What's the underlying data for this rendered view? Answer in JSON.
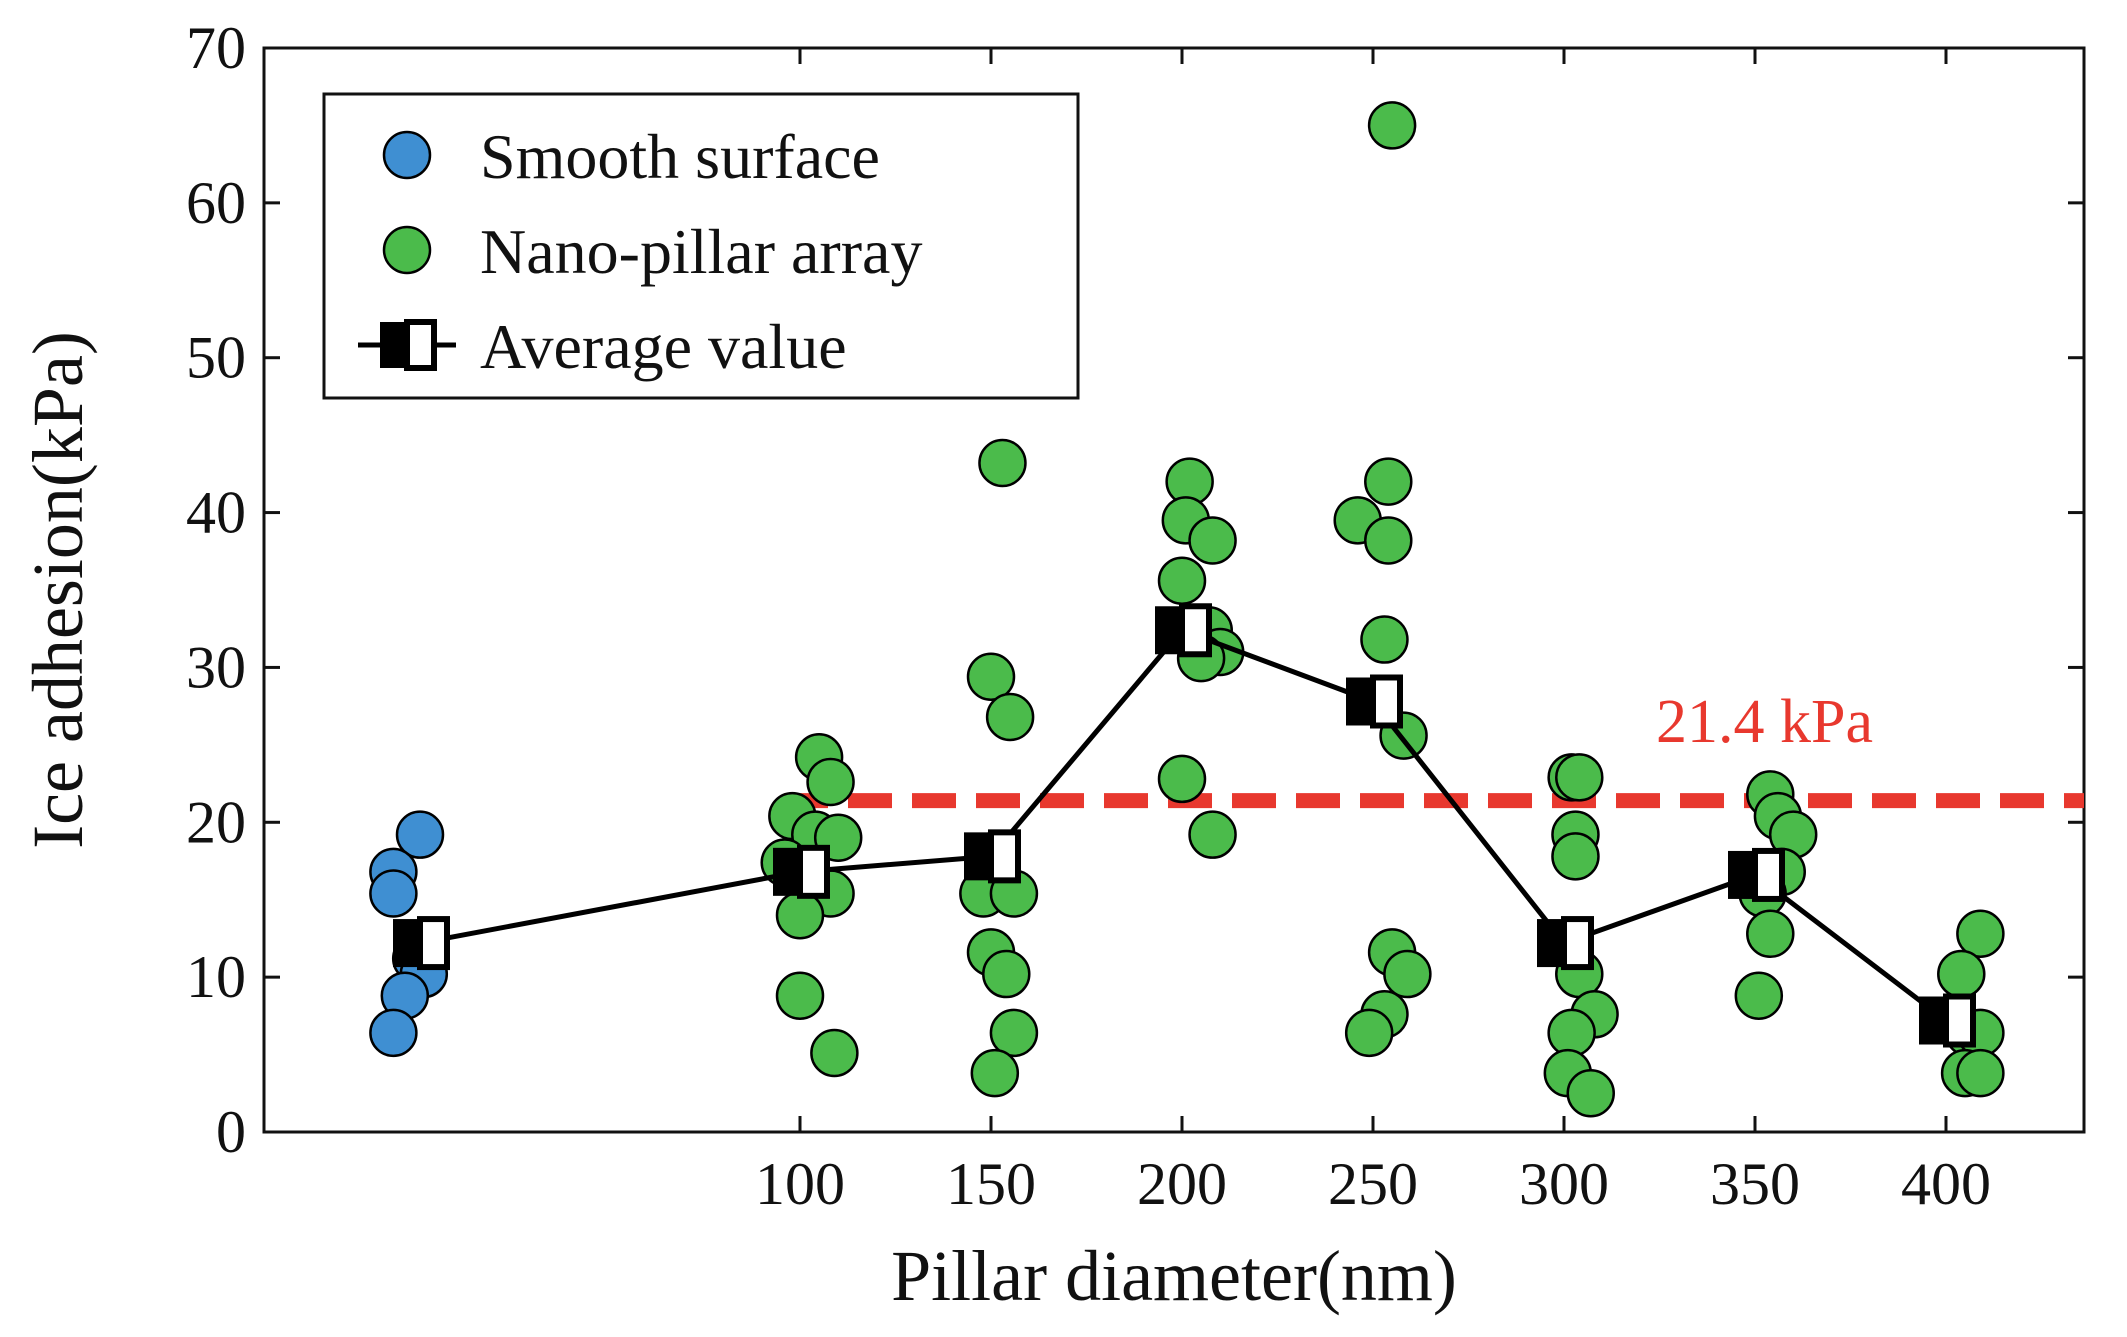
{
  "chart_data": {
    "type": "scatter",
    "xlabel": "Pillar diameter(nm)",
    "ylabel": "Ice adhesion(kPa)",
    "ylim": [
      0,
      70
    ],
    "yticks": [
      0,
      10,
      20,
      30,
      40,
      50,
      60,
      70
    ],
    "xticks": [
      100,
      150,
      200,
      250,
      300,
      350,
      400
    ],
    "legend": {
      "position": "top-left",
      "entries": [
        "Smooth surface",
        "Nano-pillar array",
        "Average value"
      ]
    },
    "colors": {
      "smooth": "#3f8fd2",
      "pillar": "#4bbb4b",
      "reference": "#e8382e",
      "outline": "#000000"
    },
    "reference_line": {
      "value": 21.4,
      "label": "21.4 kPa"
    },
    "series": [
      {
        "name": "Smooth surface",
        "group": "Smooth",
        "points": [
          [
            0,
            19.2
          ],
          [
            -7,
            16.8
          ],
          [
            -7,
            15.4
          ],
          [
            -1,
            11.2
          ],
          [
            1,
            10.2
          ],
          [
            -4,
            8.8
          ],
          [
            -7,
            6.4
          ]
        ]
      },
      {
        "name": "Nano-pillar array",
        "points": [
          [
            105,
            24.2
          ],
          [
            108,
            22.6
          ],
          [
            98,
            20.4
          ],
          [
            104,
            19.2
          ],
          [
            110,
            19.0
          ],
          [
            96,
            17.4
          ],
          [
            108,
            15.4
          ],
          [
            100,
            14.0
          ],
          [
            100,
            8.8
          ],
          [
            109,
            5.1
          ],
          [
            153,
            43.2
          ],
          [
            150,
            29.4
          ],
          [
            155,
            26.8
          ],
          [
            150,
            17.8
          ],
          [
            148,
            15.4
          ],
          [
            156,
            15.4
          ],
          [
            150,
            11.6
          ],
          [
            154,
            10.2
          ],
          [
            156,
            6.4
          ],
          [
            151,
            3.8
          ],
          [
            202,
            42.0
          ],
          [
            201,
            39.5
          ],
          [
            208,
            38.2
          ],
          [
            200,
            35.6
          ],
          [
            207,
            32.4
          ],
          [
            210,
            31.0
          ],
          [
            205,
            30.6
          ],
          [
            200,
            22.8
          ],
          [
            208,
            19.2
          ],
          [
            255,
            65.0
          ],
          [
            254,
            42.0
          ],
          [
            246,
            39.5
          ],
          [
            254,
            38.2
          ],
          [
            253,
            31.8
          ],
          [
            258,
            25.6
          ],
          [
            255,
            11.6
          ],
          [
            259,
            10.2
          ],
          [
            253,
            7.6
          ],
          [
            249,
            6.4
          ],
          [
            302,
            22.9
          ],
          [
            304,
            22.9
          ],
          [
            303,
            19.2
          ],
          [
            303,
            17.8
          ],
          [
            304,
            10.2
          ],
          [
            308,
            7.6
          ],
          [
            302,
            6.4
          ],
          [
            301,
            3.8
          ],
          [
            307,
            2.5
          ],
          [
            354,
            21.8
          ],
          [
            356,
            20.4
          ],
          [
            360,
            19.2
          ],
          [
            357,
            16.8
          ],
          [
            352,
            15.4
          ],
          [
            354,
            12.8
          ],
          [
            351,
            8.8
          ],
          [
            409,
            12.8
          ],
          [
            404,
            10.2
          ],
          [
            406,
            6.4
          ],
          [
            409,
            6.4
          ],
          [
            405,
            3.8
          ],
          [
            409,
            3.8
          ]
        ]
      },
      {
        "name": "Average value",
        "points": [
          [
            "Smooth",
            12.2
          ],
          [
            100,
            16.8
          ],
          [
            150,
            17.8
          ],
          [
            200,
            32.4
          ],
          [
            250,
            27.8
          ],
          [
            300,
            12.2
          ],
          [
            350,
            16.6
          ],
          [
            400,
            7.2
          ]
        ]
      }
    ]
  }
}
